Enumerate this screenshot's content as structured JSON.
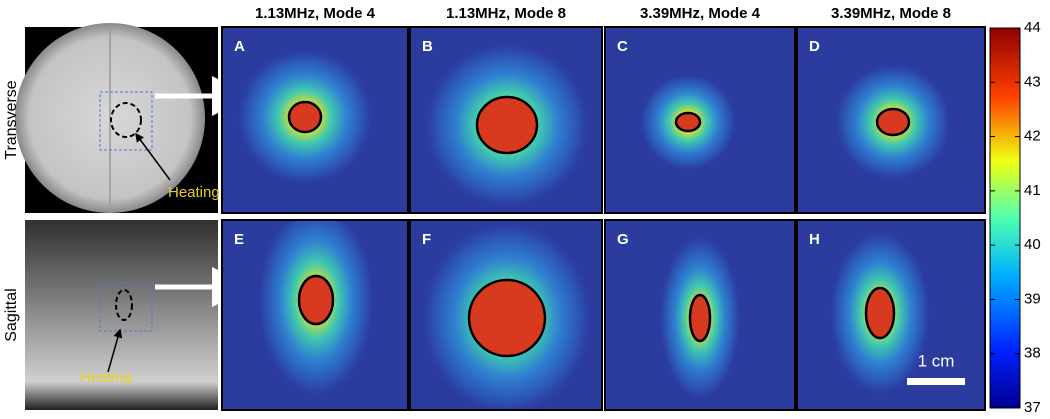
{
  "columns": [
    "1.13MHz, Mode 4",
    "1.13MHz, Mode 8",
    "3.39MHz, Mode 4",
    "3.39MHz, Mode 8"
  ],
  "rows": [
    "Transverse",
    "Sagittal"
  ],
  "panels": [
    "A",
    "B",
    "C",
    "D",
    "E",
    "F",
    "G",
    "H"
  ],
  "annotations": {
    "heating": [
      "Heating",
      "Heating"
    ],
    "scale_bar": "1 cm"
  },
  "colorbar": {
    "range": [
      37,
      44
    ],
    "ticks": [
      37,
      38,
      39,
      40,
      41,
      42,
      43,
      44
    ]
  }
}
